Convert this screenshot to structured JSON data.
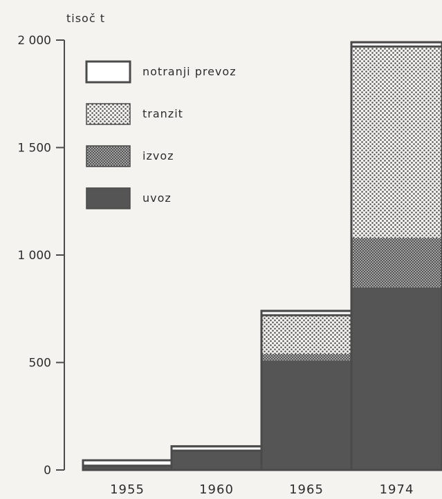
{
  "chart_data": {
    "type": "bar",
    "stacked": true,
    "title": "",
    "ylabel": "tisoč t",
    "xlabel": "",
    "ylim": [
      0,
      2000
    ],
    "yticks": [
      {
        "value": 0,
        "label": "0"
      },
      {
        "value": 500,
        "label": "500"
      },
      {
        "value": 1000,
        "label": "1 000"
      },
      {
        "value": 1500,
        "label": "1 500"
      },
      {
        "value": 2000,
        "label": "2 000"
      }
    ],
    "categories": [
      "1955",
      "1960",
      "1965",
      "1974"
    ],
    "series": [
      {
        "name": "uvoz",
        "values": [
          20,
          90,
          510,
          850
        ],
        "pattern": "solid"
      },
      {
        "name": "izvoz",
        "values": [
          0,
          0,
          30,
          230
        ],
        "pattern": "fine"
      },
      {
        "name": "tranzit",
        "values": [
          0,
          0,
          180,
          890
        ],
        "pattern": "coarse"
      },
      {
        "name": "notranji prevoz",
        "values": [
          25,
          20,
          20,
          20
        ],
        "pattern": "white"
      }
    ],
    "legend": {
      "placement": "top-left",
      "order": [
        "notranji prevoz",
        "tranzit",
        "izvoz",
        "uvoz"
      ]
    },
    "grid": false
  },
  "colors": {
    "dark": "#555555",
    "outline": "#4a4a4a",
    "background": "#f4f3ef",
    "white": "#ffffff"
  }
}
